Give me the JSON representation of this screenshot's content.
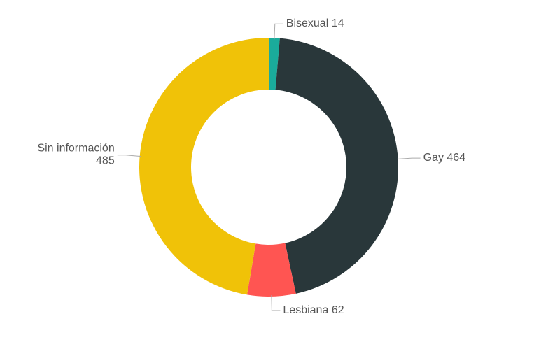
{
  "chart_data": {
    "type": "donut",
    "categories": [
      "Bisexual",
      "Gay",
      "Lesbiana",
      "Sin información"
    ],
    "values": [
      14,
      464,
      62,
      485
    ],
    "colors": [
      "#1aab9b",
      "#29373a",
      "#ff5552",
      "#f0c208"
    ]
  }
}
